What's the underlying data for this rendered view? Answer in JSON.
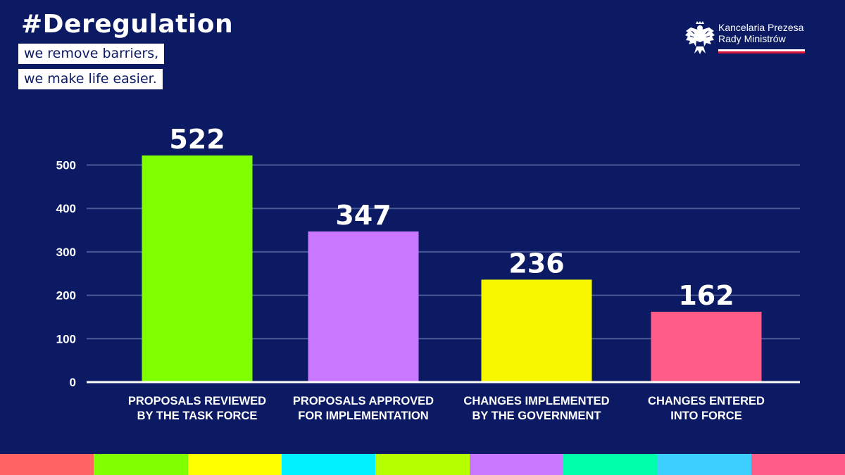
{
  "header": {
    "hashtag": "#Deregulation",
    "tagline_1": "we remove barriers,",
    "tagline_2": "we make life easier."
  },
  "logo": {
    "line_1": "Kancelaria Prezesa",
    "line_2": "Rady Ministrów",
    "icon": "white-eagle-emblem-icon"
  },
  "chart_data": {
    "type": "bar",
    "categories": [
      [
        "PROPOSALS REVIEWED",
        "BY THE TASK FORCE"
      ],
      [
        "PROPOSALS APPROVED",
        "FOR IMPLEMENTATION"
      ],
      [
        "CHANGES IMPLEMENTED",
        "BY THE GOVERNMENT"
      ],
      [
        "CHANGES ENTERED",
        "INTO FORCE"
      ]
    ],
    "values": [
      522,
      347,
      236,
      162
    ],
    "bar_colors": [
      "#80ff00",
      "#c977ff",
      "#f7f700",
      "#ff5c88"
    ],
    "yticks": [
      0,
      100,
      200,
      300,
      400,
      500
    ],
    "ylim": [
      0,
      500
    ],
    "grid": true,
    "title": "",
    "xlabel": "",
    "ylabel": ""
  },
  "theme": {
    "background": "#0b1a63",
    "gridline": "#4b5a96",
    "bottom_stripes": [
      "#ff6363",
      "#80ff00",
      "#ffff00",
      "#00f0ff",
      "#b5ff00",
      "#c977ff",
      "#00ffaa",
      "#3dcfff",
      "#ff5c88"
    ]
  }
}
